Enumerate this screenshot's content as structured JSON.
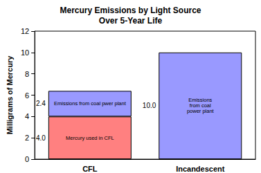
{
  "chart_data": {
    "type": "bar",
    "stacked": true,
    "title": "Mercury Emissions by Light Source\nOver 5-Year Life",
    "y_label": "Milligrams of Mercury",
    "categories": [
      "CFL",
      "Incandescent"
    ],
    "series": [
      {
        "color": "#ff8080",
        "values": [
          4.0,
          null
        ],
        "value_labels": [
          "4.0",
          null
        ],
        "segment_labels": [
          "Mercury used in CFL",
          null
        ]
      },
      {
        "color": "#9999ff",
        "values": [
          2.4,
          10.0
        ],
        "value_labels": [
          "2.4",
          "10.0"
        ],
        "segment_labels": [
          "Emissions from coal pwer plant",
          "Emissions\nfrom coal\npower plant"
        ]
      }
    ],
    "ylim": [
      0,
      12
    ],
    "yticks": [
      0,
      2,
      4,
      6,
      8,
      10,
      12
    ],
    "grid": false,
    "data_labels": true
  }
}
